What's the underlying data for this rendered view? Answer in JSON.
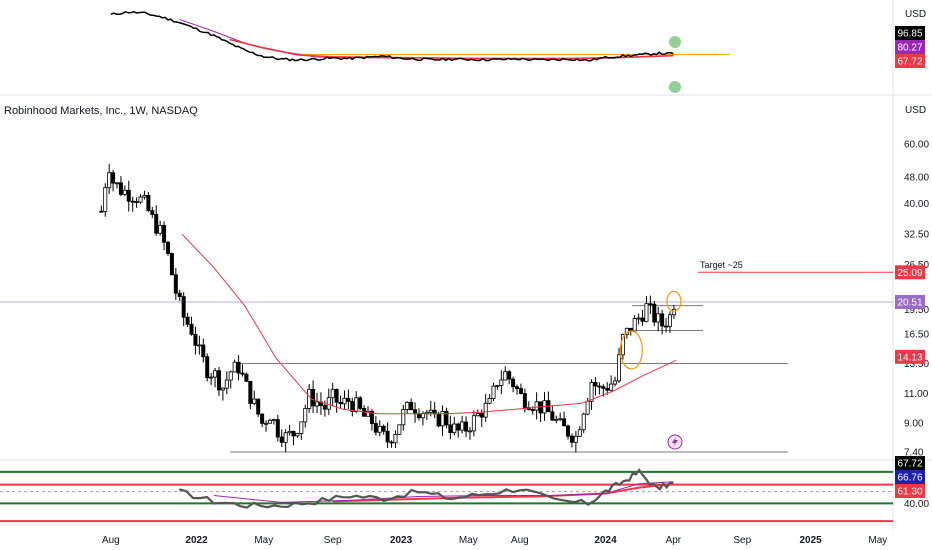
{
  "title": "Robinhood Markets, Inc., 1W, NASDAQ",
  "currency_top": "USD",
  "currency_main": "USD",
  "target_label": "Target ~25",
  "chart_data": [
    {
      "type": "line",
      "panel": "relative-strength",
      "series": [
        {
          "color": "#000000",
          "x": [
            "2021-08",
            "2021-09",
            "2021-10",
            "2021-11",
            "2021-12",
            "2022-01",
            "2022-02",
            "2022-03",
            "2022-04",
            "2022-05",
            "2022-06",
            "2022-07",
            "2022-08",
            "2022-09",
            "2022-10",
            "2022-11",
            "2022-12",
            "2023-01",
            "2023-02",
            "2023-03",
            "2023-04",
            "2023-05",
            "2023-06",
            "2023-07",
            "2023-08",
            "2023-09",
            "2023-10",
            "2023-11",
            "2023-12",
            "2024-01",
            "2024-02",
            "2024-03",
            "2024-04",
            "2024-05"
          ],
          "values": [
            96.0,
            97.0,
            96.5,
            95.0,
            93.0,
            90.5,
            88.0,
            85.0,
            82.0,
            80.0,
            79.0,
            78.7,
            79.0,
            79.4,
            79.2,
            79.7,
            80.1,
            79.3,
            79.0,
            78.8,
            79.0,
            78.9,
            78.8,
            78.9,
            79.1,
            78.7,
            78.8,
            79.0,
            78.5,
            79.6,
            80.2,
            80.6,
            81.2,
            81.1
          ]
        },
        {
          "color": "#9c27b0",
          "x": [
            "2021-12",
            "2022-02",
            "2022-04",
            "2022-06",
            "2022-08",
            "2022-10",
            "2022-12",
            "2023-03",
            "2023-06",
            "2023-09",
            "2023-12",
            "2024-02",
            "2024-04",
            "2024-05"
          ],
          "values": [
            94.2,
            89.6,
            84.8,
            82.0,
            79.8,
            79.6,
            79.5,
            79.4,
            79.3,
            79.2,
            79.2,
            79.5,
            80.2,
            80.3
          ]
        },
        {
          "color": "#f23645",
          "x": [
            "2022-03",
            "2022-05",
            "2022-07",
            "2022-09",
            "2022-11",
            "2023-02",
            "2023-05",
            "2023-08",
            "2023-11",
            "2024-01",
            "2024-03",
            "2024-05"
          ],
          "values": [
            86.5,
            83.2,
            80.6,
            79.9,
            79.7,
            79.5,
            79.3,
            79.2,
            79.3,
            79.5,
            79.9,
            80.3
          ]
        }
      ],
      "level_lines": [
        {
          "value": 80.8,
          "color": "#ff9800"
        }
      ],
      "markers": [
        {
          "x": "2024-05",
          "value": 80.8,
          "color": "#81c784"
        },
        {
          "x": "2024-05",
          "value": 67.72,
          "color": "#81c784"
        }
      ],
      "tags": [
        {
          "label": "96.85",
          "bg": "#000000",
          "fg": "#ffffff"
        },
        {
          "label": "80.27",
          "bg": "#9c27b0",
          "fg": "#ffffff"
        },
        {
          "label": "67.72",
          "bg": "#f23645",
          "fg": "#ffffff"
        }
      ]
    },
    {
      "type": "candlestick",
      "panel": "price",
      "title": "Robinhood Markets, Inc., 1W, NASDAQ",
      "y_scale": "log",
      "y_ticks": [
        "60.00",
        "48.00",
        "40.00",
        "32.50",
        "26.50",
        "19.50",
        "16.50",
        "13.50",
        "11.00",
        "9.00",
        "7.40"
      ],
      "x_ticks": [
        "Aug",
        "2022",
        "May",
        "Sep",
        "2023",
        "May",
        "Aug",
        "2024",
        "Apr",
        "Sep",
        "2025",
        "May"
      ],
      "x_ticks_scale": [
        "2021-08",
        "2022-01",
        "2022-05",
        "2022-09",
        "2023-01",
        "2023-05",
        "2023-08",
        "2024-01",
        "2024-05",
        "2024-09",
        "2025-01",
        "2025-05"
      ],
      "close_path": [
        [
          "2021-07-29",
          38.0
        ],
        [
          "2021-08-05",
          46.0
        ],
        [
          "2021-08-12",
          52.0
        ],
        [
          "2021-08-19",
          46.5
        ],
        [
          "2021-09-02",
          44.0
        ],
        [
          "2021-09-16",
          43.0
        ],
        [
          "2021-09-30",
          42.0
        ],
        [
          "2021-10-14",
          40.0
        ],
        [
          "2021-10-28",
          36.0
        ],
        [
          "2021-11-11",
          33.0
        ],
        [
          "2021-11-25",
          28.0
        ],
        [
          "2021-12-09",
          22.0
        ],
        [
          "2021-12-23",
          18.5
        ],
        [
          "2022-01-06",
          17.0
        ],
        [
          "2022-01-20",
          14.5
        ],
        [
          "2022-02-03",
          13.0
        ],
        [
          "2022-02-17",
          12.5
        ],
        [
          "2022-03-03",
          11.5
        ],
        [
          "2022-03-17",
          12.8
        ],
        [
          "2022-03-31",
          13.2
        ],
        [
          "2022-04-14",
          11.5
        ],
        [
          "2022-04-28",
          10.2
        ],
        [
          "2022-05-12",
          9.0
        ],
        [
          "2022-05-26",
          9.6
        ],
        [
          "2022-06-09",
          8.6
        ],
        [
          "2022-06-23",
          8.2
        ],
        [
          "2022-07-07",
          8.4
        ],
        [
          "2022-07-21",
          9.3
        ],
        [
          "2022-08-04",
          10.8
        ],
        [
          "2022-08-18",
          10.4
        ],
        [
          "2022-09-01",
          10.0
        ],
        [
          "2022-09-15",
          10.7
        ],
        [
          "2022-09-29",
          10.2
        ],
        [
          "2022-10-13",
          10.5
        ],
        [
          "2022-10-27",
          10.1
        ],
        [
          "2022-11-10",
          9.4
        ],
        [
          "2022-11-24",
          9.1
        ],
        [
          "2022-12-08",
          8.4
        ],
        [
          "2022-12-22",
          8.0
        ],
        [
          "2023-01-05",
          8.6
        ],
        [
          "2023-01-19",
          9.6
        ],
        [
          "2023-02-02",
          10.2
        ],
        [
          "2023-02-16",
          9.9
        ],
        [
          "2023-03-02",
          9.7
        ],
        [
          "2023-03-16",
          9.1
        ],
        [
          "2023-03-30",
          9.5
        ],
        [
          "2023-04-13",
          8.8
        ],
        [
          "2023-04-27",
          8.5
        ],
        [
          "2023-05-11",
          8.7
        ],
        [
          "2023-05-25",
          9.2
        ],
        [
          "2023-06-08",
          9.8
        ],
        [
          "2023-06-22",
          10.2
        ],
        [
          "2023-07-06",
          12.0
        ],
        [
          "2023-07-20",
          12.6
        ],
        [
          "2023-08-03",
          11.8
        ],
        [
          "2023-08-17",
          10.8
        ],
        [
          "2023-08-31",
          10.5
        ],
        [
          "2023-09-14",
          10.2
        ],
        [
          "2023-09-28",
          9.9
        ],
        [
          "2023-10-12",
          9.4
        ],
        [
          "2023-10-26",
          8.8
        ],
        [
          "2023-11-09",
          8.5
        ],
        [
          "2023-11-23",
          8.2
        ],
        [
          "2023-12-07",
          10.0
        ],
        [
          "2023-12-21",
          12.0
        ],
        [
          "2024-01-04",
          11.3
        ],
        [
          "2024-01-18",
          11.6
        ],
        [
          "2024-02-01",
          12.0
        ],
        [
          "2024-02-15",
          16.0
        ],
        [
          "2024-02-29",
          17.3
        ],
        [
          "2024-03-14",
          18.4
        ],
        [
          "2024-03-28",
          19.8
        ],
        [
          "2024-04-11",
          18.5
        ],
        [
          "2024-04-25",
          17.6
        ],
        [
          "2024-05-09",
          18.6
        ],
        [
          "2024-05-16",
          20.51
        ]
      ],
      "ma": {
        "color": "#f23645",
        "x": [
          "2021-12-20",
          "2022-02-14",
          "2022-04-11",
          "2022-06-06",
          "2022-08-08",
          "2022-10-03",
          "2022-12-05",
          "2023-02-06",
          "2023-04-03",
          "2023-06-05",
          "2023-08-07",
          "2023-10-02",
          "2023-12-04",
          "2024-01-29",
          "2024-03-25",
          "2024-05-20"
        ],
        "values": [
          32.5,
          26.0,
          20.0,
          14.0,
          10.6,
          9.9,
          9.6,
          9.6,
          9.6,
          9.7,
          9.9,
          10.1,
          10.3,
          11.2,
          12.5,
          13.8
        ]
      },
      "horizontal_levels": [
        {
          "value": 20.51,
          "color": "#b2b5d9"
        },
        {
          "value": 7.4,
          "color": "#787b86"
        },
        {
          "value": 13.5,
          "color": "#787b86"
        },
        {
          "value": 20.0,
          "color": "#787b86"
        },
        {
          "value": 16.9,
          "color": "#787b86"
        },
        {
          "value": 25.09,
          "color": "#f23645"
        }
      ],
      "circles": [
        {
          "x": "2024-03-01",
          "value": 14.8
        },
        {
          "x": "2024-05-16",
          "value": 20.6
        }
      ],
      "tags": [
        {
          "label": "25.09",
          "bg": "#f23645",
          "fg": "#ffffff",
          "value": 25.09
        },
        {
          "label": "20.51",
          "bg": "#9c6ac9",
          "fg": "#ffffff",
          "value": 20.51
        },
        {
          "label": "14.13",
          "bg": "#f23645",
          "fg": "#ffffff",
          "value": 14.13
        }
      ]
    },
    {
      "type": "line",
      "panel": "rsi",
      "y_ticks": [
        "40.00"
      ],
      "series": [
        {
          "color": "#555555",
          "x": [
            "2021-12",
            "2022-02",
            "2022-04",
            "2022-06",
            "2022-08",
            "2022-10",
            "2022-12",
            "2023-02",
            "2023-04",
            "2023-06",
            "2023-08",
            "2023-10",
            "2023-12",
            "2024-01",
            "2024-02",
            "2024-03",
            "2024-04",
            "2024-05"
          ],
          "values": [
            52,
            42,
            38,
            38,
            42,
            48,
            45,
            52,
            45,
            50,
            55,
            43,
            40,
            52,
            62,
            72,
            55,
            61
          ]
        },
        {
          "color": "#9c27b0",
          "x": [
            "2022-02",
            "2022-06",
            "2022-10",
            "2023-02",
            "2023-06",
            "2023-10",
            "2024-01",
            "2024-03",
            "2024-05"
          ],
          "values": [
            48,
            41,
            43,
            47,
            48,
            48,
            50,
            60,
            62
          ]
        },
        {
          "color": "#f23645",
          "x": [
            "2022-09",
            "2023-01",
            "2023-05",
            "2023-09",
            "2024-01",
            "2024-03",
            "2024-05"
          ],
          "values": [
            42,
            44,
            46,
            47,
            50,
            56,
            60
          ]
        }
      ],
      "levels": [
        {
          "value": 72,
          "color": "#1b7a2a"
        },
        {
          "value": 40,
          "color": "#1b7a2a"
        },
        {
          "value": 59,
          "color": "#f23645"
        },
        {
          "value": 22,
          "color": "#f23645"
        },
        {
          "value": 52,
          "color": "#9e9e9e"
        }
      ],
      "tags": [
        {
          "label": "67.72",
          "bg": "#000000",
          "fg": "#ffffff"
        },
        {
          "label": "66.76",
          "bg": "#1e22aa",
          "fg": "#ffffff"
        },
        {
          "label": "61.30",
          "bg": "#f23645",
          "fg": "#ffffff"
        }
      ]
    }
  ]
}
